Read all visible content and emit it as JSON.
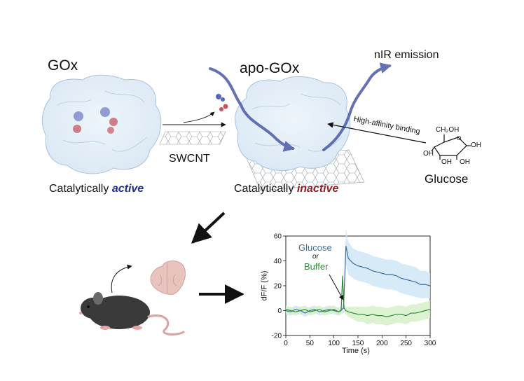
{
  "top": {
    "gox_title": "GOx",
    "apo_title": "apo-GOx",
    "swcnt_label": "SWCNT",
    "active_prefix": "Catalytically ",
    "active_word": "active",
    "inactive_prefix": "Catalytically ",
    "inactive_word": "inactive",
    "nir_label": "nIR emission",
    "binding_label": "High-affinity binding",
    "glucose_label": "Glucose",
    "glucose_groups": [
      "CH₂OH",
      "OH",
      "OH",
      "OH",
      "OH"
    ]
  },
  "colors": {
    "active": "#1f2a8c",
    "inactive": "#8c1f1f",
    "emission_arrow": "#4a5aa8",
    "glucose_series": "#3f6f9c",
    "buffer_series": "#2f8a3a",
    "glucose_band": "#cfe6f7",
    "buffer_band": "#d6f0c8"
  },
  "chart_data": {
    "type": "line",
    "xlabel": "Time (s)",
    "ylabel": "dF/F (%)",
    "xlim": [
      0,
      300
    ],
    "ylim": [
      -20,
      60
    ],
    "xticks": [
      0,
      50,
      100,
      150,
      200,
      250,
      300
    ],
    "yticks": [
      -20,
      0,
      20,
      40,
      60
    ],
    "legend": {
      "glucose": "Glucose",
      "or": "or",
      "buffer": "Buffer"
    },
    "grid": false,
    "series": [
      {
        "name": "Glucose",
        "x": [
          0,
          10,
          20,
          30,
          40,
          50,
          60,
          70,
          80,
          90,
          100,
          110,
          120,
          125,
          130,
          140,
          150,
          160,
          170,
          180,
          190,
          200,
          210,
          220,
          230,
          240,
          250,
          260,
          270,
          280,
          290,
          300
        ],
        "values": [
          0,
          -1,
          1,
          0,
          -2,
          0,
          1,
          -1,
          0,
          1,
          0,
          -1,
          2,
          52,
          42,
          38,
          36,
          35,
          34,
          32,
          31,
          30,
          29,
          29,
          28,
          26,
          25,
          24,
          23,
          21,
          21,
          20
        ],
        "band": [
          3,
          3,
          3,
          3,
          3,
          3,
          3,
          3,
          3,
          3,
          3,
          3,
          4,
          14,
          13,
          12,
          12,
          12,
          12,
          12,
          12,
          12,
          12,
          12,
          12,
          12,
          12,
          12,
          12,
          11,
          11,
          10
        ]
      },
      {
        "name": "Buffer",
        "x": [
          0,
          10,
          20,
          30,
          40,
          50,
          60,
          70,
          80,
          90,
          100,
          110,
          115,
          118,
          121,
          125,
          130,
          140,
          150,
          160,
          170,
          180,
          190,
          200,
          210,
          220,
          230,
          240,
          250,
          260,
          270,
          280,
          290,
          300
        ],
        "values": [
          1,
          0,
          -1,
          0,
          1,
          -1,
          0,
          1,
          -1,
          0,
          1,
          -1,
          0,
          28,
          2,
          0,
          -1,
          -2,
          -3,
          -3,
          -4,
          -3,
          -4,
          -4,
          -5,
          -4,
          -3,
          -3,
          -4,
          -2,
          -2,
          -1,
          0,
          1
        ],
        "band": [
          3,
          3,
          3,
          3,
          3,
          3,
          3,
          3,
          3,
          3,
          3,
          3,
          3,
          3,
          3,
          3,
          4,
          5,
          6,
          6,
          7,
          7,
          7,
          7,
          7,
          7,
          7,
          7,
          7,
          7,
          7,
          7,
          7,
          7
        ]
      }
    ]
  }
}
